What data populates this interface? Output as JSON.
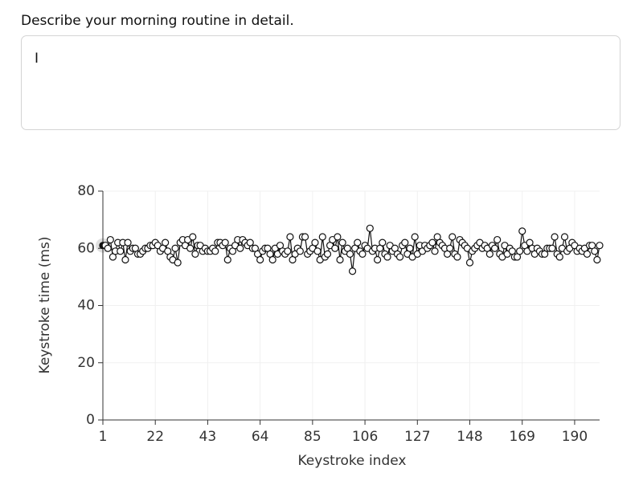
{
  "prompt": "Describe your morning routine in detail.",
  "response": "I",
  "chart_data": {
    "type": "line",
    "x_label": "Keystroke index",
    "y_label": "Keystroke time (ms)",
    "xlim": [
      1,
      200
    ],
    "ylim": [
      0,
      80
    ],
    "xticks": [
      1,
      22,
      43,
      64,
      85,
      106,
      127,
      148,
      169,
      190
    ],
    "yticks": [
      0,
      20,
      40,
      60,
      80
    ],
    "grid": true,
    "color": "#111111",
    "x": [
      1,
      2,
      3,
      4,
      5,
      6,
      7,
      8,
      9,
      10,
      11,
      12,
      13,
      14,
      15,
      16,
      17,
      18,
      19,
      20,
      21,
      22,
      23,
      24,
      25,
      26,
      27,
      28,
      29,
      30,
      31,
      32,
      33,
      34,
      35,
      36,
      37,
      38,
      39,
      40,
      41,
      42,
      43,
      44,
      45,
      46,
      47,
      48,
      49,
      50,
      51,
      52,
      53,
      54,
      55,
      56,
      57,
      58,
      59,
      60,
      61,
      62,
      63,
      64,
      65,
      66,
      67,
      68,
      69,
      70,
      71,
      72,
      73,
      74,
      75,
      76,
      77,
      78,
      79,
      80,
      81,
      82,
      83,
      84,
      85,
      86,
      87,
      88,
      89,
      90,
      91,
      92,
      93,
      94,
      95,
      96,
      97,
      98,
      99,
      100,
      101,
      102,
      103,
      104,
      105,
      106,
      107,
      108,
      109,
      110,
      111,
      112,
      113,
      114,
      115,
      116,
      117,
      118,
      119,
      120,
      121,
      122,
      123,
      124,
      125,
      126,
      127,
      128,
      129,
      130,
      131,
      132,
      133,
      134,
      135,
      136,
      137,
      138,
      139,
      140,
      141,
      142,
      143,
      144,
      145,
      146,
      147,
      148,
      149,
      150,
      151,
      152,
      153,
      154,
      155,
      156,
      157,
      158,
      159,
      160,
      161,
      162,
      163,
      164,
      165,
      166,
      167,
      168,
      169,
      170,
      171,
      172,
      173,
      174,
      175,
      176,
      177,
      178,
      179,
      180,
      181,
      182,
      183,
      184,
      185,
      186,
      187,
      188,
      189,
      190,
      191,
      192,
      193,
      194,
      195,
      196,
      197,
      198,
      199,
      200
    ],
    "values": [
      61,
      61,
      60,
      63,
      57,
      59,
      62,
      59,
      62,
      56,
      62,
      59,
      60,
      60,
      58,
      58,
      59,
      60,
      60,
      61,
      61,
      62,
      61,
      59,
      60,
      62,
      59,
      57,
      56,
      60,
      55,
      62,
      63,
      61,
      63,
      60,
      64,
      58,
      61,
      61,
      59,
      60,
      59,
      59,
      60,
      59,
      62,
      62,
      61,
      62,
      56,
      60,
      59,
      61,
      63,
      60,
      63,
      62,
      61,
      62,
      60,
      60,
      58,
      56,
      59,
      60,
      60,
      58,
      56,
      60,
      58,
      61,
      59,
      58,
      59,
      64,
      56,
      58,
      60,
      59,
      64,
      64,
      58,
      59,
      60,
      62,
      59,
      56,
      64,
      57,
      58,
      61,
      63,
      60,
      64,
      56,
      62,
      59,
      60,
      58,
      52,
      60,
      62,
      59,
      58,
      61,
      60,
      67,
      59,
      60,
      56,
      60,
      62,
      58,
      57,
      61,
      59,
      60,
      58,
      57,
      61,
      62,
      58,
      60,
      57,
      64,
      58,
      61,
      59,
      61,
      60,
      61,
      62,
      59,
      64,
      62,
      61,
      60,
      58,
      60,
      64,
      58,
      57,
      63,
      62,
      61,
      60,
      55,
      59,
      60,
      61,
      62,
      60,
      61,
      60,
      58,
      61,
      60,
      63,
      58,
      57,
      61,
      58,
      60,
      59,
      57,
      57,
      59,
      66,
      61,
      59,
      62,
      60,
      58,
      60,
      59,
      58,
      58,
      60,
      60,
      60,
      64,
      58,
      57,
      60,
      64,
      59,
      60,
      62,
      61,
      59,
      60,
      59,
      60,
      58,
      61,
      61,
      59,
      56,
      61
    ]
  }
}
